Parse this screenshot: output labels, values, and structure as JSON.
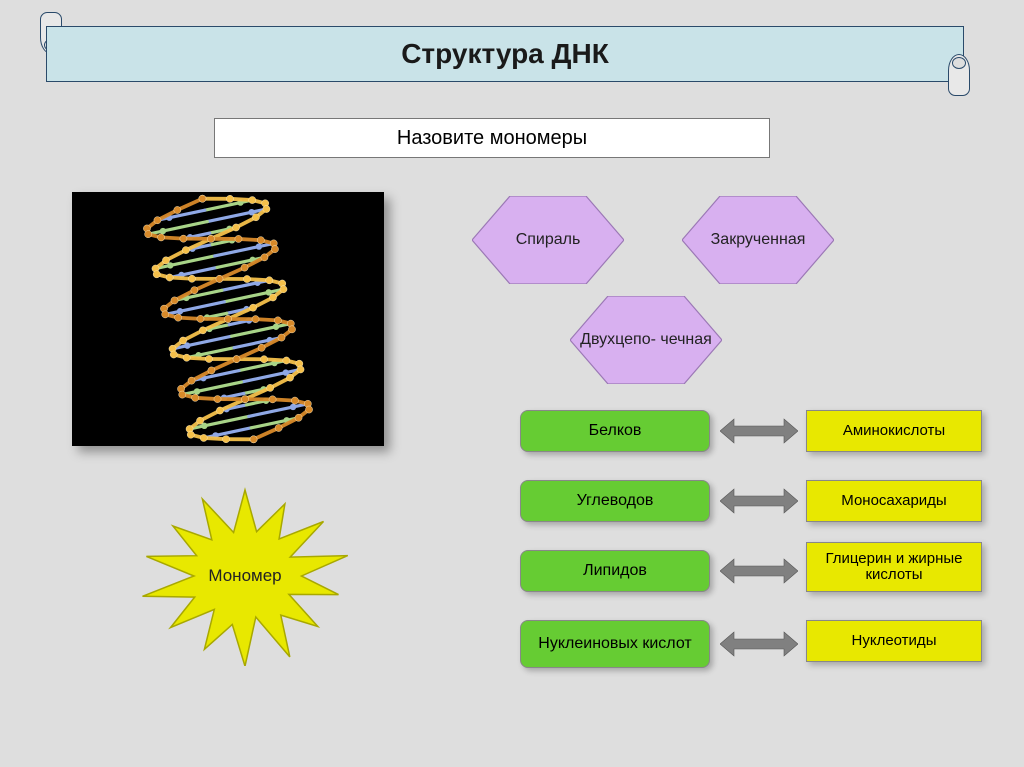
{
  "title": "Структура ДНК",
  "subtitle": "Назовите мономеры",
  "hexagons": {
    "fill": "#d8b0f0",
    "stroke": "#9b78b5",
    "items": [
      "Спираль",
      "Закрученная",
      "Двухцепо-\nчечная"
    ]
  },
  "green_boxes": {
    "fill": "#66cc33",
    "items": [
      "Белков",
      "Углеводов",
      "Липидов",
      "Нуклеиновых кислот"
    ]
  },
  "yellow_boxes": {
    "fill": "#e8e800",
    "items": [
      "Аминокислоты",
      "Моносахариды",
      "Глицерин и жирные кислоты",
      "Нуклеотиды"
    ]
  },
  "arrow": {
    "fill": "#808080"
  },
  "starburst": {
    "fill": "#e8e800",
    "stroke": "#a8a800",
    "label": "Мономер"
  },
  "dna": {
    "background": "#000000",
    "backbone_colors": [
      "#f5c04a",
      "#d88a2a"
    ],
    "base_colors": [
      "#8fa8e6",
      "#e6a0c2",
      "#a8d488",
      "#f0d070"
    ],
    "turns": 3,
    "points_per_turn": 14
  },
  "colors": {
    "page_bg": "#dedede",
    "banner_bg": "#c9e3e8",
    "banner_border": "#2a4a6a"
  }
}
